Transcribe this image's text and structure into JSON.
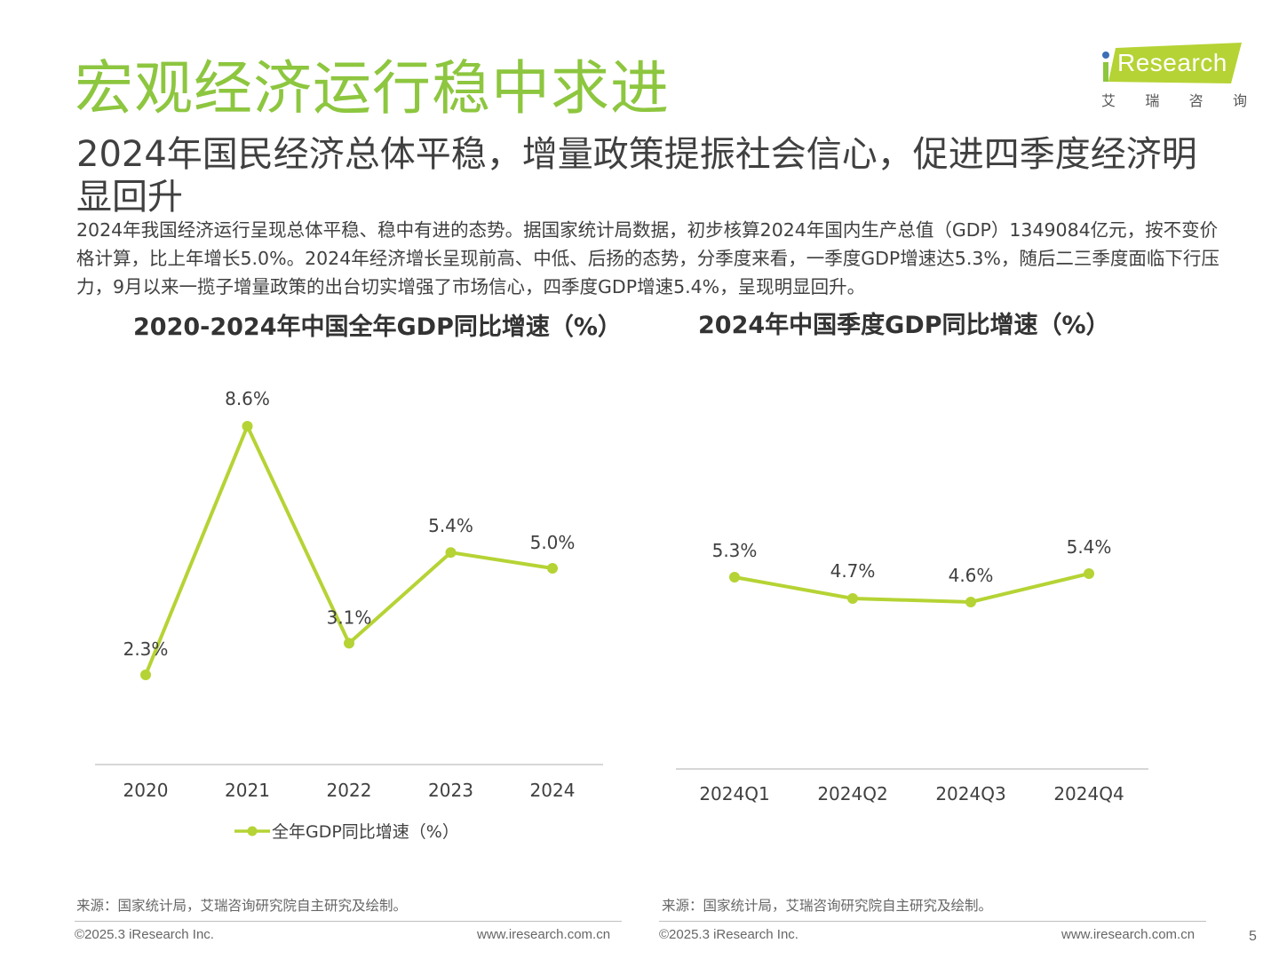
{
  "header": {
    "title": "宏观经济运行稳中求进",
    "subtitle": "2024年国民经济总体平稳，增量政策提振社会信心，促进四季度经济明显回升",
    "body": "2024年我国经济运行呈现总体平稳、稳中有进的态势。据国家统计局数据，初步核算2024年国内生产总值（GDP）1349084亿元，按不变价格计算，比上年增长5.0%。2024年经济增长呈现前高、中低、后扬的态势，分季度来看，一季度GDP增速达5.3%，随后二三季度面临下行压力，9月以来一揽子增量政策的出台切实增强了市场信心，四季度GDP增速5.4%，呈现明显回升。"
  },
  "logo": {
    "wordmark": "Research",
    "cn_chars": [
      "艾",
      "瑞",
      "咨",
      "询"
    ],
    "banner_color": "#b5d334",
    "i_dot_color": "#3c6fb6"
  },
  "colors": {
    "accent": "#8dc63f",
    "line": "#b5d334",
    "axis": "#bfbfbf"
  },
  "chart_data": [
    {
      "type": "line",
      "title": "2020-2024年中国全年GDP同比增速（%）",
      "categories": [
        "2020",
        "2021",
        "2022",
        "2023",
        "2024"
      ],
      "series": [
        {
          "name": "全年GDP同比增速（%）",
          "values": [
            2.3,
            8.6,
            3.1,
            5.4,
            5.0
          ]
        }
      ],
      "data_labels": [
        "2.3%",
        "8.6%",
        "3.1%",
        "5.4%",
        "5.0%"
      ],
      "legend": "bottom",
      "grid": false
    },
    {
      "type": "line",
      "title": "2024年中国季度GDP同比增速（%）",
      "categories": [
        "2024Q1",
        "2024Q2",
        "2024Q3",
        "2024Q4"
      ],
      "series": [
        {
          "values": [
            5.3,
            4.7,
            4.6,
            5.4
          ]
        }
      ],
      "data_labels": [
        "5.3%",
        "4.7%",
        "4.6%",
        "5.4%"
      ],
      "legend": "none",
      "grid": false
    }
  ],
  "footer": {
    "source_left": "来源：国家统计局，艾瑞咨询研究院自主研究及绘制。",
    "source_right": "来源：国家统计局，艾瑞咨询研究院自主研究及绘制。",
    "copyright_left": "©2025.3 iResearch Inc.",
    "url_left": "www.iresearch.com.cn",
    "copyright_right": "©2025.3 iResearch Inc.",
    "url_right": "www.iresearch.com.cn",
    "page_number": "5"
  }
}
